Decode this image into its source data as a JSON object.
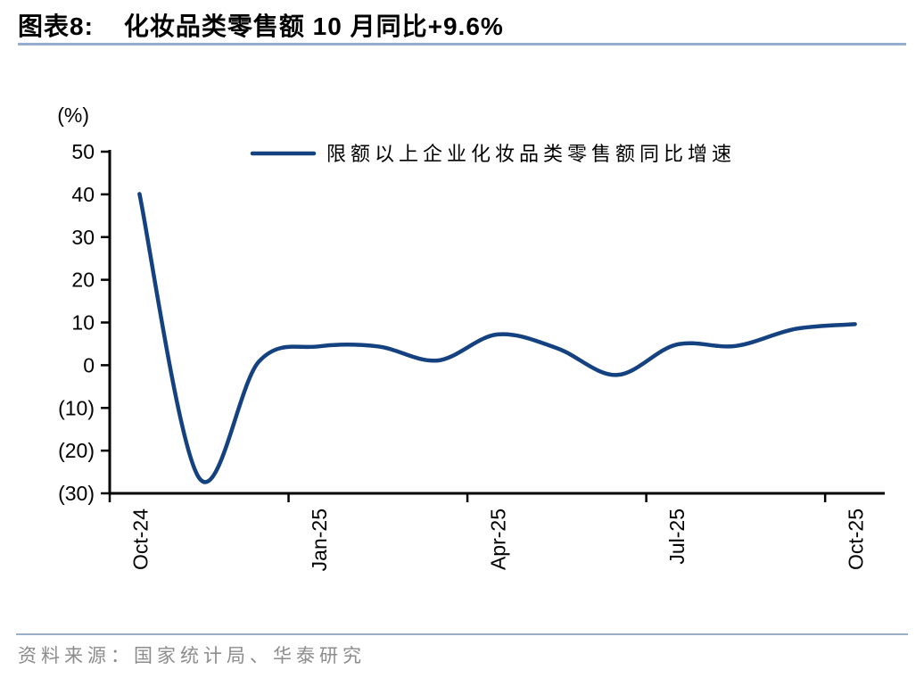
{
  "header": {
    "figure_label": "图表8:",
    "figure_title": "化妆品类零售额 10 月同比+9.6%"
  },
  "footer": {
    "source": "资料来源：国家统计局、华泰研究"
  },
  "colors": {
    "line": "#14417F",
    "axis": "#000000",
    "title_underline": "#96AECE",
    "source_divider": "#9BAFC9",
    "source_text": "#8C8C8C"
  },
  "chart_data": {
    "type": "line",
    "title": "化妆品类零售额 10 月同比+9.6%",
    "xlabel": "",
    "ylabel": "(%)",
    "grid": false,
    "legend_position": "top-center",
    "x": [
      "Oct-24",
      "Nov-24",
      "Dec-24",
      "Jan-25",
      "Feb-25",
      "Mar-25",
      "Apr-25",
      "May-25",
      "Jun-25",
      "Jul-25",
      "Aug-25",
      "Sep-25",
      "Oct-25"
    ],
    "series": [
      {
        "name": "限额以上企业化妆品类零售额同比增速",
        "values": [
          40.1,
          -26.4,
          0.8,
          4.4,
          4.4,
          1.1,
          7.2,
          4.0,
          -2.3,
          4.8,
          4.5,
          8.5,
          9.6
        ]
      }
    ],
    "y_axis": {
      "unit": "(%)",
      "min": -30,
      "max": 50,
      "step": 10,
      "values": [
        50,
        40,
        30,
        20,
        10,
        0,
        -10,
        -20,
        -30
      ],
      "labels": [
        "50",
        "40",
        "30",
        "20",
        "10",
        "0",
        "(10)",
        "(20)",
        "(30)"
      ]
    },
    "x_axis": {
      "tick_every": 3,
      "tick_labels": [
        "Oct-24",
        "Jan-25",
        "Apr-25",
        "Jul-25",
        "Oct-25"
      ]
    }
  }
}
